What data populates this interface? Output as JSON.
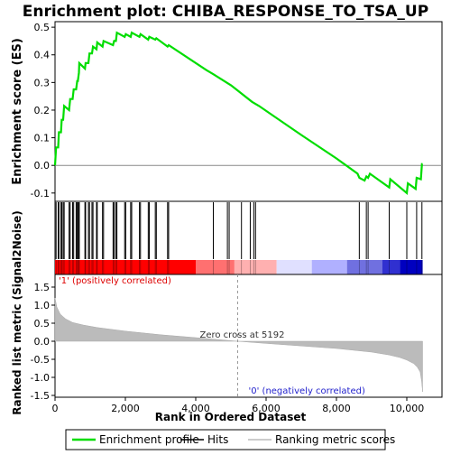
{
  "chart_data": {
    "type": "line",
    "title": "Enrichment plot: CHIBA_RESPONSE_TO_TSA_UP",
    "top_panel": {
      "ylabel": "Enrichment score (ES)",
      "ylim": [
        -0.13,
        0.52
      ],
      "yticks": [
        -0.1,
        0.0,
        0.1,
        0.2,
        0.3,
        0.4,
        0.5
      ],
      "ytick_labels": [
        "-0.1",
        "0.0",
        "0.1",
        "0.2",
        "0.3",
        "0.4",
        "0.5"
      ],
      "series": [
        {
          "name": "Enrichment profile",
          "color": "#00dd00",
          "x": [
            0,
            30,
            90,
            110,
            170,
            190,
            230,
            260,
            400,
            430,
            500,
            530,
            600,
            630,
            650,
            680,
            690,
            850,
            870,
            950,
            980,
            1050,
            1080,
            1180,
            1200,
            1350,
            1380,
            1650,
            1680,
            1730,
            1760,
            1980,
            2010,
            2150,
            2180,
            2400,
            2430,
            2650,
            2680,
            2850,
            2880,
            3200,
            3230,
            4300,
            4500,
            5000,
            5200,
            5600,
            5800,
            6200,
            7000,
            8000,
            8600,
            8650,
            8800,
            8850,
            8900,
            8950,
            9500,
            9530,
            10000,
            10030,
            10250,
            10280,
            10400,
            10430,
            10450
          ],
          "y": [
            0.0,
            0.065,
            0.065,
            0.12,
            0.12,
            0.165,
            0.165,
            0.215,
            0.2,
            0.24,
            0.24,
            0.275,
            0.275,
            0.305,
            0.305,
            0.335,
            0.37,
            0.35,
            0.37,
            0.37,
            0.405,
            0.405,
            0.43,
            0.42,
            0.445,
            0.43,
            0.45,
            0.435,
            0.45,
            0.45,
            0.48,
            0.465,
            0.475,
            0.465,
            0.48,
            0.465,
            0.475,
            0.455,
            0.465,
            0.455,
            0.46,
            0.43,
            0.435,
            0.345,
            0.33,
            0.29,
            0.27,
            0.23,
            0.215,
            0.18,
            0.11,
            0.025,
            -0.03,
            -0.045,
            -0.055,
            -0.04,
            -0.045,
            -0.03,
            -0.08,
            -0.05,
            -0.1,
            -0.065,
            -0.085,
            -0.045,
            -0.05,
            0.005,
            0.005
          ]
        }
      ],
      "zero_line": true
    },
    "hits_panel": {
      "label": "Hits",
      "positions": [
        30,
        90,
        110,
        170,
        190,
        230,
        260,
        400,
        430,
        500,
        530,
        600,
        630,
        650,
        680,
        690,
        850,
        870,
        950,
        980,
        1050,
        1080,
        1180,
        1200,
        1350,
        1380,
        1650,
        1680,
        1730,
        1760,
        1980,
        2010,
        2150,
        2180,
        2400,
        2430,
        2650,
        2680,
        2850,
        2880,
        3200,
        3230,
        4500,
        4900,
        4950,
        5300,
        5550,
        5650,
        5700,
        8650,
        8850,
        8900,
        9500,
        10000,
        10280,
        10430
      ]
    },
    "gradient_bar": {
      "colors": [
        "#ff0000",
        "#ff7070",
        "#ffb0b0",
        "#e0e0ff",
        "#b0b0ff",
        "#7070e0",
        "#3030d0",
        "#0000c0"
      ],
      "breaks": [
        0,
        4000,
        5100,
        6300,
        7300,
        8300,
        9300,
        9800,
        10450
      ]
    },
    "bottom_panel": {
      "ylabel": "Ranked list metric (Signal2Noise)",
      "xlabel": "Rank in Ordered Dataset",
      "xlim": [
        0,
        11000
      ],
      "xticks": [
        0,
        2000,
        4000,
        6000,
        8000,
        10000
      ],
      "xtick_labels": [
        "0",
        "2,000",
        "4,000",
        "6,000",
        "8,000",
        "10,000"
      ],
      "ylim": [
        -1.55,
        1.85
      ],
      "yticks": [
        -1.5,
        -1.0,
        -0.5,
        0.0,
        0.5,
        1.0,
        1.5
      ],
      "ytick_labels": [
        "-1.5",
        "-1.0",
        "-0.5",
        "0.0",
        "0.5",
        "1.0",
        "1.5"
      ],
      "metric_x": [
        0,
        50,
        150,
        300,
        500,
        800,
        1200,
        2000,
        3000,
        4000,
        5192,
        6000,
        7000,
        8000,
        9000,
        9500,
        9800,
        10000,
        10200,
        10300,
        10380,
        10420,
        10450
      ],
      "metric_y": [
        1.2,
        0.95,
        0.75,
        0.62,
        0.52,
        0.45,
        0.38,
        0.28,
        0.18,
        0.1,
        0.0,
        -0.06,
        -0.13,
        -0.2,
        -0.3,
        -0.38,
        -0.45,
        -0.52,
        -0.62,
        -0.72,
        -0.85,
        -1.1,
        -1.4
      ],
      "zero_cross_label": "Zero cross at 5192",
      "zero_cross_x": 5192,
      "positive_label": "'1' (positively correlated)",
      "negative_label": "'0' (negatively correlated)",
      "positive_color": "#dd0000",
      "negative_color": "#2222cc"
    },
    "legend": {
      "placement": "bottom",
      "items": [
        {
          "label": "Enrichment profile",
          "color": "#00dd00"
        },
        {
          "label": "Hits",
          "color": "#000000"
        },
        {
          "label": "Ranking metric scores",
          "color": "#bbbbbb"
        }
      ]
    }
  }
}
